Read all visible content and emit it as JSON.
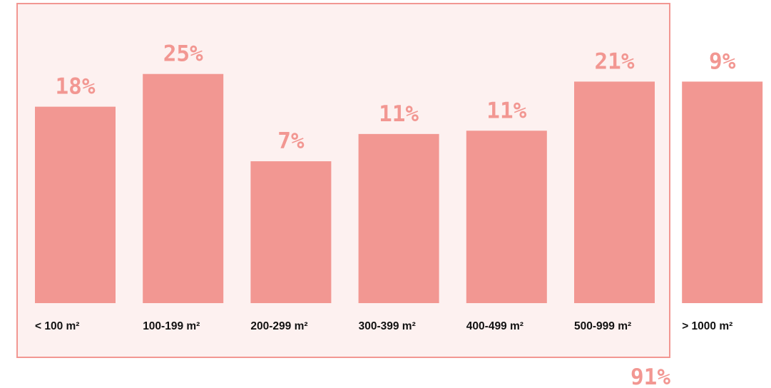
{
  "chart_data": {
    "type": "bar",
    "categories": [
      "< 100 m²",
      "100-199 m²",
      "200-299 m²",
      "300-399 m²",
      "400-499 m²",
      "500-999 m²",
      "> 1000 m²"
    ],
    "values": [
      18,
      25,
      7,
      11,
      11,
      21,
      9
    ],
    "value_labels": [
      "18%",
      "25%",
      "7%",
      "11%",
      "11%",
      "21%",
      "9%"
    ],
    "bar_heights_visual": [
      18,
      21,
      13,
      15.5,
      15.8,
      20.3,
      20.3
    ],
    "highlight_group": {
      "categories": [
        "< 100 m²",
        "100-199 m²",
        "200-299 m²",
        "300-399 m²",
        "400-499 m²",
        "500-999 m²"
      ],
      "label": "91%"
    },
    "grid": false,
    "legend": "none",
    "colors": {
      "bar": "#f29792",
      "label": "#f29792",
      "box_fill": "#fdf1f0",
      "box_stroke": "#f29792",
      "category_text": "#111111"
    }
  }
}
